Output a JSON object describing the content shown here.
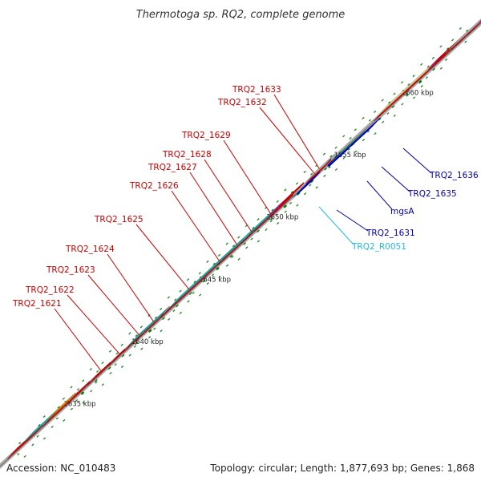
{
  "title": "Thermotoga sp. RQ2, complete genome",
  "footer": {
    "accession": "Accession: NC_010483",
    "stats": "Topology: circular; Length: 1,877,693 bp; Genes: 1,868"
  },
  "scale": {
    "ticks": [
      {
        "kbp": 1635,
        "label": "1635 kbp"
      },
      {
        "kbp": 1640,
        "label": "1640 kbp"
      },
      {
        "kbp": 1645,
        "label": "1645 kbp"
      },
      {
        "kbp": 1650,
        "label": "1650 kbp"
      },
      {
        "kbp": 1655,
        "label": "1655 kbp"
      },
      {
        "kbp": 1660,
        "label": "1660 kbp"
      }
    ]
  },
  "colors": {
    "forward_cds": "#ff0000",
    "reverse_cds": "#0000ee",
    "cyan_track": "#1fc6c6",
    "magenta": "#e5179b",
    "gray": "#c8c8c8",
    "yellow": "#f0e7a4",
    "green": "#4cd24c",
    "orange": "#ff9900",
    "label_red": "#cc0000",
    "label_blue": "#0000aa",
    "label_cyan": "#22bbdd"
  },
  "gene_labels": [
    {
      "text": "TRQ2_1633",
      "strand": "forward"
    },
    {
      "text": "TRQ2_1632",
      "strand": "forward"
    },
    {
      "text": "TRQ2_1629",
      "strand": "forward"
    },
    {
      "text": "TRQ2_1628",
      "strand": "forward"
    },
    {
      "text": "TRQ2_1627",
      "strand": "forward"
    },
    {
      "text": "TRQ2_1626",
      "strand": "forward"
    },
    {
      "text": "TRQ2_1625",
      "strand": "forward"
    },
    {
      "text": "TRQ2_1624",
      "strand": "forward"
    },
    {
      "text": "TRQ2_1623",
      "strand": "forward"
    },
    {
      "text": "TRQ2_1622",
      "strand": "forward"
    },
    {
      "text": "TRQ2_1621",
      "strand": "forward"
    },
    {
      "text": "TRQ2_1636",
      "strand": "reverse"
    },
    {
      "text": "TRQ2_1635",
      "strand": "reverse"
    },
    {
      "text": "mgsA",
      "strand": "reverse"
    },
    {
      "text": "TRQ2_1631",
      "strand": "reverse"
    },
    {
      "text": "TRQ2_R0051",
      "strand": "rna"
    }
  ]
}
